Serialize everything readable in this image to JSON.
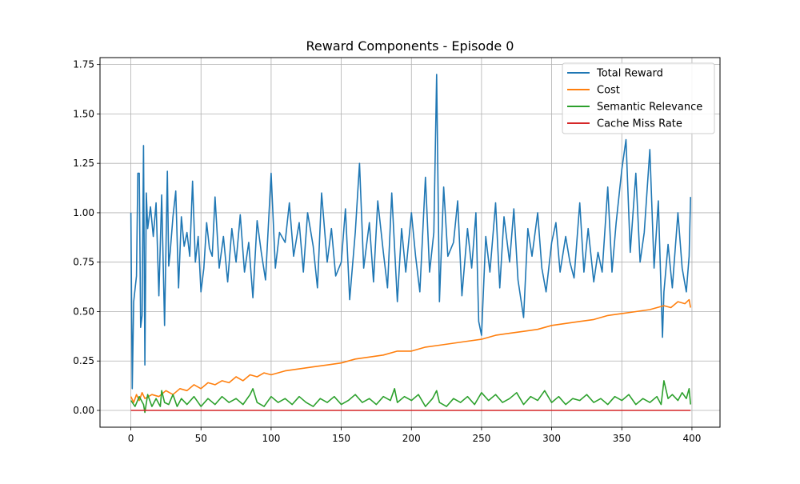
{
  "chart_data": {
    "type": "line",
    "title": "Reward Components - Episode 0",
    "xlabel": "",
    "ylabel": "",
    "xlim": [
      -22,
      420
    ],
    "ylim": [
      -0.085,
      1.785
    ],
    "xticks": [
      0,
      50,
      100,
      150,
      200,
      250,
      300,
      350,
      400
    ],
    "yticks": [
      0.0,
      0.25,
      0.5,
      0.75,
      1.0,
      1.25,
      1.5,
      1.75
    ],
    "grid": true,
    "legend_position": "top-right",
    "series": [
      {
        "name": "Total Reward",
        "color": "#1f77b4",
        "x": [
          0,
          1,
          2,
          4,
          5,
          6,
          7,
          8,
          9,
          10,
          11,
          12,
          14,
          16,
          18,
          20,
          22,
          24,
          26,
          27,
          28,
          30,
          32,
          34,
          36,
          38,
          40,
          42,
          44,
          46,
          48,
          50,
          52,
          54,
          56,
          58,
          60,
          63,
          66,
          69,
          72,
          75,
          78,
          81,
          84,
          87,
          90,
          93,
          96,
          100,
          103,
          106,
          110,
          113,
          116,
          120,
          123,
          126,
          130,
          133,
          136,
          140,
          143,
          146,
          150,
          153,
          156,
          160,
          163,
          166,
          170,
          173,
          176,
          180,
          183,
          186,
          190,
          193,
          196,
          200,
          203,
          206,
          210,
          213,
          216,
          218,
          220,
          223,
          226,
          230,
          233,
          236,
          240,
          243,
          246,
          248,
          250,
          253,
          256,
          260,
          263,
          266,
          270,
          273,
          276,
          280,
          283,
          286,
          290,
          293,
          296,
          300,
          303,
          306,
          310,
          313,
          316,
          320,
          323,
          326,
          330,
          333,
          336,
          340,
          343,
          346,
          350,
          353,
          356,
          360,
          363,
          366,
          370,
          373,
          376,
          379,
          380,
          383,
          386,
          390,
          393,
          396,
          398,
          399
        ],
        "values": [
          1.0,
          0.11,
          0.55,
          0.68,
          1.2,
          1.2,
          0.42,
          0.48,
          1.34,
          0.23,
          1.1,
          0.92,
          1.03,
          0.88,
          1.05,
          0.58,
          1.09,
          0.43,
          1.21,
          0.73,
          0.8,
          0.98,
          1.11,
          0.62,
          0.98,
          0.83,
          0.9,
          0.78,
          1.16,
          0.75,
          0.88,
          0.6,
          0.72,
          0.95,
          0.82,
          0.78,
          1.08,
          0.72,
          0.88,
          0.65,
          0.92,
          0.75,
          0.99,
          0.7,
          0.85,
          0.57,
          0.96,
          0.8,
          0.66,
          1.2,
          0.72,
          0.9,
          0.85,
          1.05,
          0.78,
          0.95,
          0.7,
          1.0,
          0.83,
          0.62,
          1.1,
          0.75,
          0.92,
          0.68,
          0.75,
          1.02,
          0.56,
          0.9,
          1.25,
          0.72,
          0.95,
          0.65,
          1.06,
          0.8,
          0.62,
          1.1,
          0.55,
          0.92,
          0.7,
          1.0,
          0.78,
          0.6,
          1.18,
          0.7,
          0.9,
          1.7,
          0.55,
          1.13,
          0.78,
          0.85,
          1.06,
          0.58,
          0.92,
          0.72,
          1.0,
          0.45,
          0.38,
          0.88,
          0.7,
          1.05,
          0.62,
          0.98,
          0.75,
          1.02,
          0.66,
          0.47,
          0.92,
          0.78,
          1.0,
          0.72,
          0.6,
          0.85,
          0.95,
          0.7,
          0.88,
          0.75,
          0.67,
          1.05,
          0.7,
          0.92,
          0.65,
          0.8,
          0.7,
          1.13,
          0.7,
          0.95,
          1.22,
          1.37,
          0.8,
          1.2,
          0.75,
          0.9,
          1.32,
          0.72,
          1.06,
          0.37,
          0.6,
          0.84,
          0.62,
          1.0,
          0.72,
          0.6,
          0.78,
          1.08
        ]
      },
      {
        "name": "Cost",
        "color": "#ff7f0e",
        "x": [
          0,
          2,
          4,
          6,
          8,
          10,
          15,
          20,
          25,
          30,
          35,
          40,
          45,
          50,
          55,
          60,
          65,
          70,
          75,
          80,
          85,
          90,
          95,
          100,
          110,
          120,
          130,
          140,
          150,
          160,
          170,
          180,
          190,
          200,
          210,
          220,
          230,
          240,
          250,
          260,
          270,
          280,
          290,
          300,
          310,
          320,
          330,
          340,
          350,
          360,
          370,
          380,
          385,
          390,
          395,
          398,
          399
        ],
        "values": [
          0.07,
          0.04,
          0.08,
          0.05,
          0.09,
          0.06,
          0.08,
          0.07,
          0.1,
          0.08,
          0.11,
          0.1,
          0.13,
          0.11,
          0.14,
          0.13,
          0.15,
          0.14,
          0.17,
          0.15,
          0.18,
          0.17,
          0.19,
          0.18,
          0.2,
          0.21,
          0.22,
          0.23,
          0.24,
          0.26,
          0.27,
          0.28,
          0.3,
          0.3,
          0.32,
          0.33,
          0.34,
          0.35,
          0.36,
          0.38,
          0.39,
          0.4,
          0.41,
          0.43,
          0.44,
          0.45,
          0.46,
          0.48,
          0.49,
          0.5,
          0.51,
          0.53,
          0.52,
          0.55,
          0.54,
          0.56,
          0.52
        ]
      },
      {
        "name": "Semantic Relevance",
        "color": "#2ca02c",
        "x": [
          0,
          3,
          6,
          9,
          10,
          12,
          15,
          18,
          21,
          22,
          24,
          27,
          30,
          33,
          36,
          40,
          45,
          50,
          55,
          60,
          65,
          70,
          75,
          80,
          85,
          87,
          90,
          95,
          100,
          105,
          110,
          115,
          120,
          125,
          130,
          135,
          140,
          145,
          150,
          155,
          160,
          165,
          170,
          175,
          180,
          185,
          188,
          190,
          195,
          200,
          205,
          210,
          215,
          218,
          220,
          225,
          230,
          235,
          240,
          245,
          250,
          255,
          260,
          265,
          270,
          275,
          280,
          285,
          290,
          295,
          300,
          305,
          310,
          315,
          320,
          325,
          330,
          335,
          340,
          345,
          350,
          355,
          360,
          365,
          370,
          375,
          378,
          380,
          383,
          386,
          390,
          393,
          396,
          398,
          399
        ],
        "values": [
          0.05,
          0.02,
          0.07,
          0.03,
          -0.01,
          0.08,
          0.02,
          0.06,
          0.02,
          0.1,
          0.04,
          0.03,
          0.08,
          0.02,
          0.06,
          0.03,
          0.07,
          0.02,
          0.06,
          0.03,
          0.07,
          0.04,
          0.06,
          0.03,
          0.08,
          0.11,
          0.04,
          0.02,
          0.07,
          0.04,
          0.06,
          0.03,
          0.07,
          0.04,
          0.02,
          0.06,
          0.04,
          0.07,
          0.03,
          0.05,
          0.08,
          0.04,
          0.06,
          0.03,
          0.07,
          0.05,
          0.11,
          0.04,
          0.07,
          0.05,
          0.08,
          0.02,
          0.06,
          0.1,
          0.04,
          0.02,
          0.06,
          0.04,
          0.07,
          0.03,
          0.09,
          0.05,
          0.08,
          0.04,
          0.06,
          0.09,
          0.03,
          0.07,
          0.05,
          0.1,
          0.04,
          0.07,
          0.03,
          0.06,
          0.05,
          0.08,
          0.04,
          0.06,
          0.03,
          0.07,
          0.05,
          0.08,
          0.03,
          0.06,
          0.04,
          0.07,
          0.03,
          0.15,
          0.06,
          0.08,
          0.05,
          0.09,
          0.06,
          0.11,
          0.03
        ]
      },
      {
        "name": "Cache Miss Rate",
        "color": "#d62728",
        "x": [
          0,
          399
        ],
        "values": [
          0.0,
          0.0
        ]
      }
    ]
  }
}
